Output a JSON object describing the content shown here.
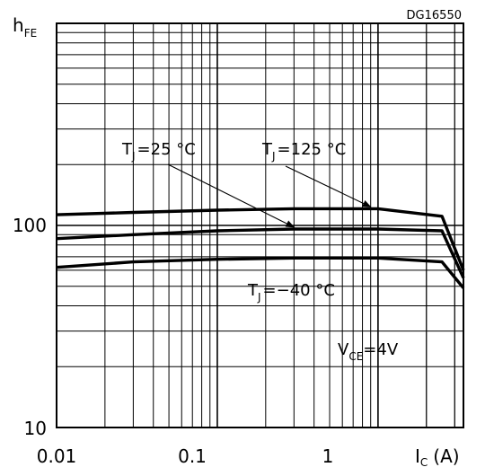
{
  "chart_data": {
    "type": "line",
    "figure_id": "DG16550",
    "x_scale": "log",
    "y_scale": "log",
    "xlim": [
      0.01,
      3.4
    ],
    "ylim": [
      10,
      1000
    ],
    "grid": true,
    "x_ticks": [
      {
        "value": 0.01,
        "label": "0.01"
      },
      {
        "value": 0.1,
        "label": "0.1"
      },
      {
        "value": 1,
        "label": "1"
      }
    ],
    "y_ticks": [
      {
        "value": 10,
        "label": "10"
      },
      {
        "value": 100,
        "label": "100"
      }
    ],
    "ylabel": {
      "main": "h",
      "sub": "FE"
    },
    "xlabel": {
      "main": "I",
      "sub": "C",
      "unit": "(A)"
    },
    "condition": {
      "main": "V",
      "sub": "CE",
      "value": "=4V"
    },
    "series": [
      {
        "name": "T_J = 125 °C",
        "label": {
          "main": "T",
          "sub": "J",
          "value": "=125 °C"
        },
        "x": [
          0.01,
          0.03,
          0.1,
          0.3,
          1,
          2.5,
          3.4
        ],
        "y": [
          113,
          116,
          119,
          121,
          121,
          111,
          60
        ]
      },
      {
        "name": "T_J = 25 °C",
        "label": {
          "main": "T",
          "sub": "J",
          "value": "=25 °C"
        },
        "x": [
          0.01,
          0.03,
          0.1,
          0.3,
          1,
          2.5,
          3.4
        ],
        "y": [
          86,
          90,
          94,
          96,
          96,
          94,
          55
        ]
      },
      {
        "name": "T_J = -40 °C",
        "label": {
          "main": "T",
          "sub": "J",
          "value": "=−40 °C"
        },
        "x": [
          0.01,
          0.03,
          0.1,
          0.3,
          1,
          2.5,
          3.4
        ],
        "y": [
          62,
          66,
          68,
          69,
          69,
          66,
          49
        ]
      }
    ]
  }
}
